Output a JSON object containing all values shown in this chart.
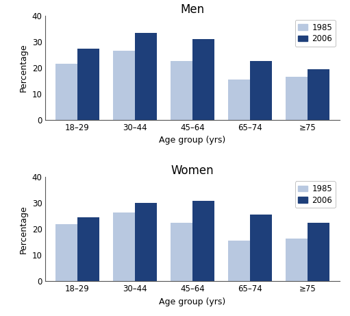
{
  "men_1985": [
    21.5,
    26.5,
    22.5,
    15.5,
    16.5
  ],
  "men_2006": [
    27.5,
    33.5,
    31.0,
    22.5,
    19.5
  ],
  "women_1985": [
    22.0,
    26.5,
    22.5,
    15.5,
    16.5
  ],
  "women_2006": [
    24.5,
    30.0,
    31.0,
    25.5,
    22.5
  ],
  "age_groups": [
    "18–29",
    "30–44",
    "45–64",
    "65–74",
    "≥75"
  ],
  "color_1985": "#b8c8e0",
  "color_2006": "#1e3f7a",
  "ylim": [
    0,
    40
  ],
  "yticks": [
    0,
    10,
    20,
    30,
    40
  ],
  "ylabel": "Percentage",
  "xlabel": "Age group (yrs)",
  "title_men": "Men",
  "title_women": "Women",
  "legend_labels": [
    "1985",
    "2006"
  ],
  "bar_width": 0.38,
  "title_fontsize": 12,
  "label_fontsize": 9,
  "tick_fontsize": 8.5,
  "legend_fontsize": 8.5
}
